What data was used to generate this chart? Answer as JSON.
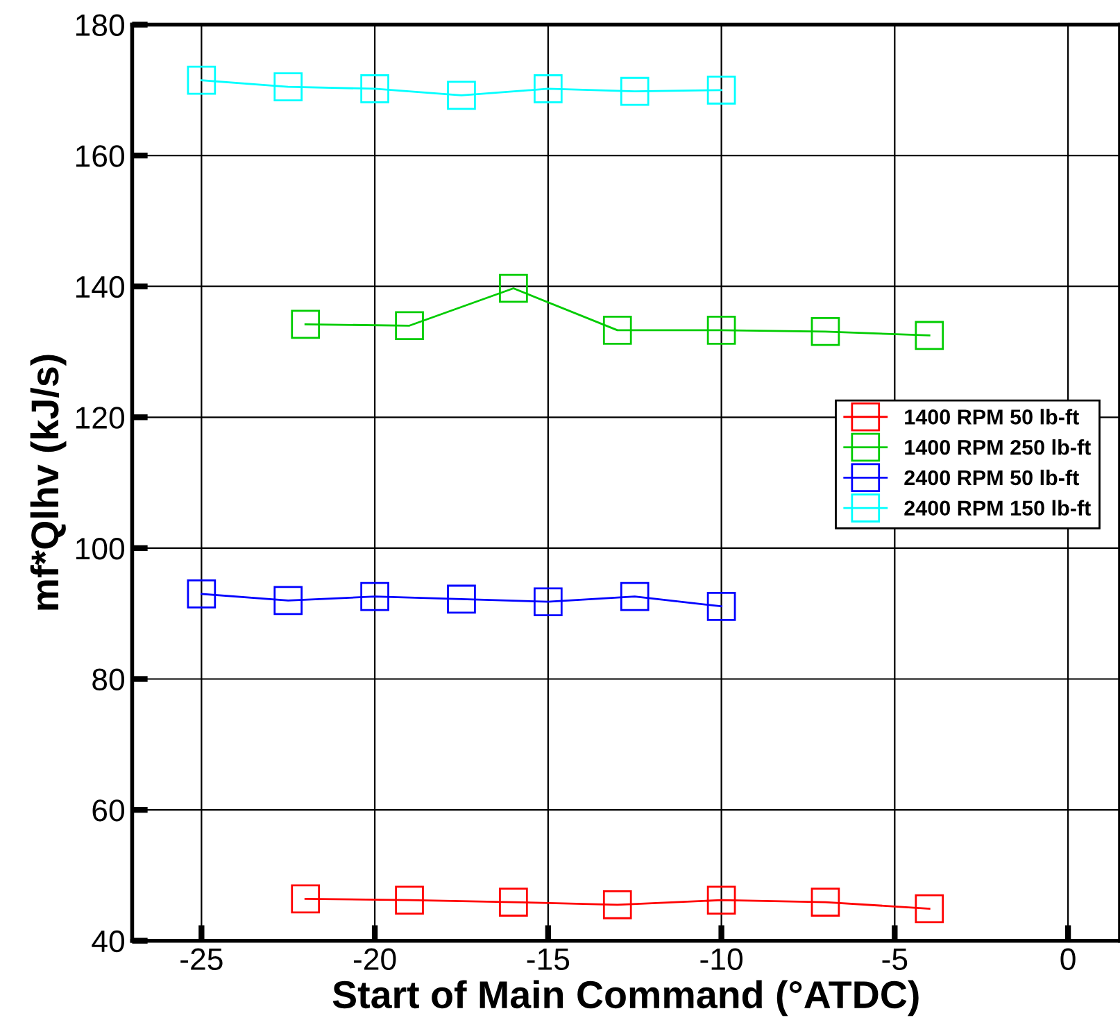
{
  "chart_data": {
    "type": "line",
    "xlabel": "Start of Main Command (°ATDC)",
    "ylabel": "mf*Qlhv (kJ/s)",
    "xlim": [
      -27,
      1.5
    ],
    "xticks": [
      {
        "value": -25,
        "label": "-25"
      },
      {
        "value": -20,
        "label": "-20"
      },
      {
        "value": -15,
        "label": "-15"
      },
      {
        "value": -10,
        "label": "-10"
      },
      {
        "value": -5,
        "label": "-5"
      },
      0
    ],
    "ylim": [
      40,
      180
    ],
    "yticks": [
      40,
      60,
      80,
      100,
      120,
      140,
      160,
      180
    ],
    "grid": true,
    "legend": "right",
    "marker": "square",
    "line_style": "solid",
    "series": [
      {
        "name": "1400 RPM 50 lb-ft",
        "color": "#ff0000",
        "x": [
          -22,
          -19,
          -16,
          -13,
          -10,
          -7,
          -4
        ],
        "values": [
          46.4,
          46.2,
          45.9,
          45.5,
          46.2,
          45.9,
          44.9
        ]
      },
      {
        "name": "1400 RPM 250 lb-ft",
        "color": "#00cc00",
        "x": [
          -22,
          -19,
          -16,
          -13,
          -10,
          -7,
          -4
        ],
        "values": [
          134.2,
          134.0,
          139.7,
          133.3,
          133.3,
          133.1,
          132.5
        ]
      },
      {
        "name": "2400 RPM 50 lb-ft",
        "color": "#0000ff",
        "x": [
          -25,
          -22.5,
          -20,
          -17.5,
          -15,
          -12.5,
          -10
        ],
        "values": [
          93.0,
          92.0,
          92.6,
          92.2,
          91.8,
          92.6,
          91.1
        ]
      },
      {
        "name": "2400 RPM 150 lb-ft",
        "color": "#00ffff",
        "x": [
          -25,
          -22.5,
          -20,
          -17.5,
          -15,
          -12.5,
          -10
        ],
        "values": [
          171.5,
          170.5,
          170.2,
          169.2,
          170.2,
          169.8,
          170.0
        ]
      }
    ]
  }
}
